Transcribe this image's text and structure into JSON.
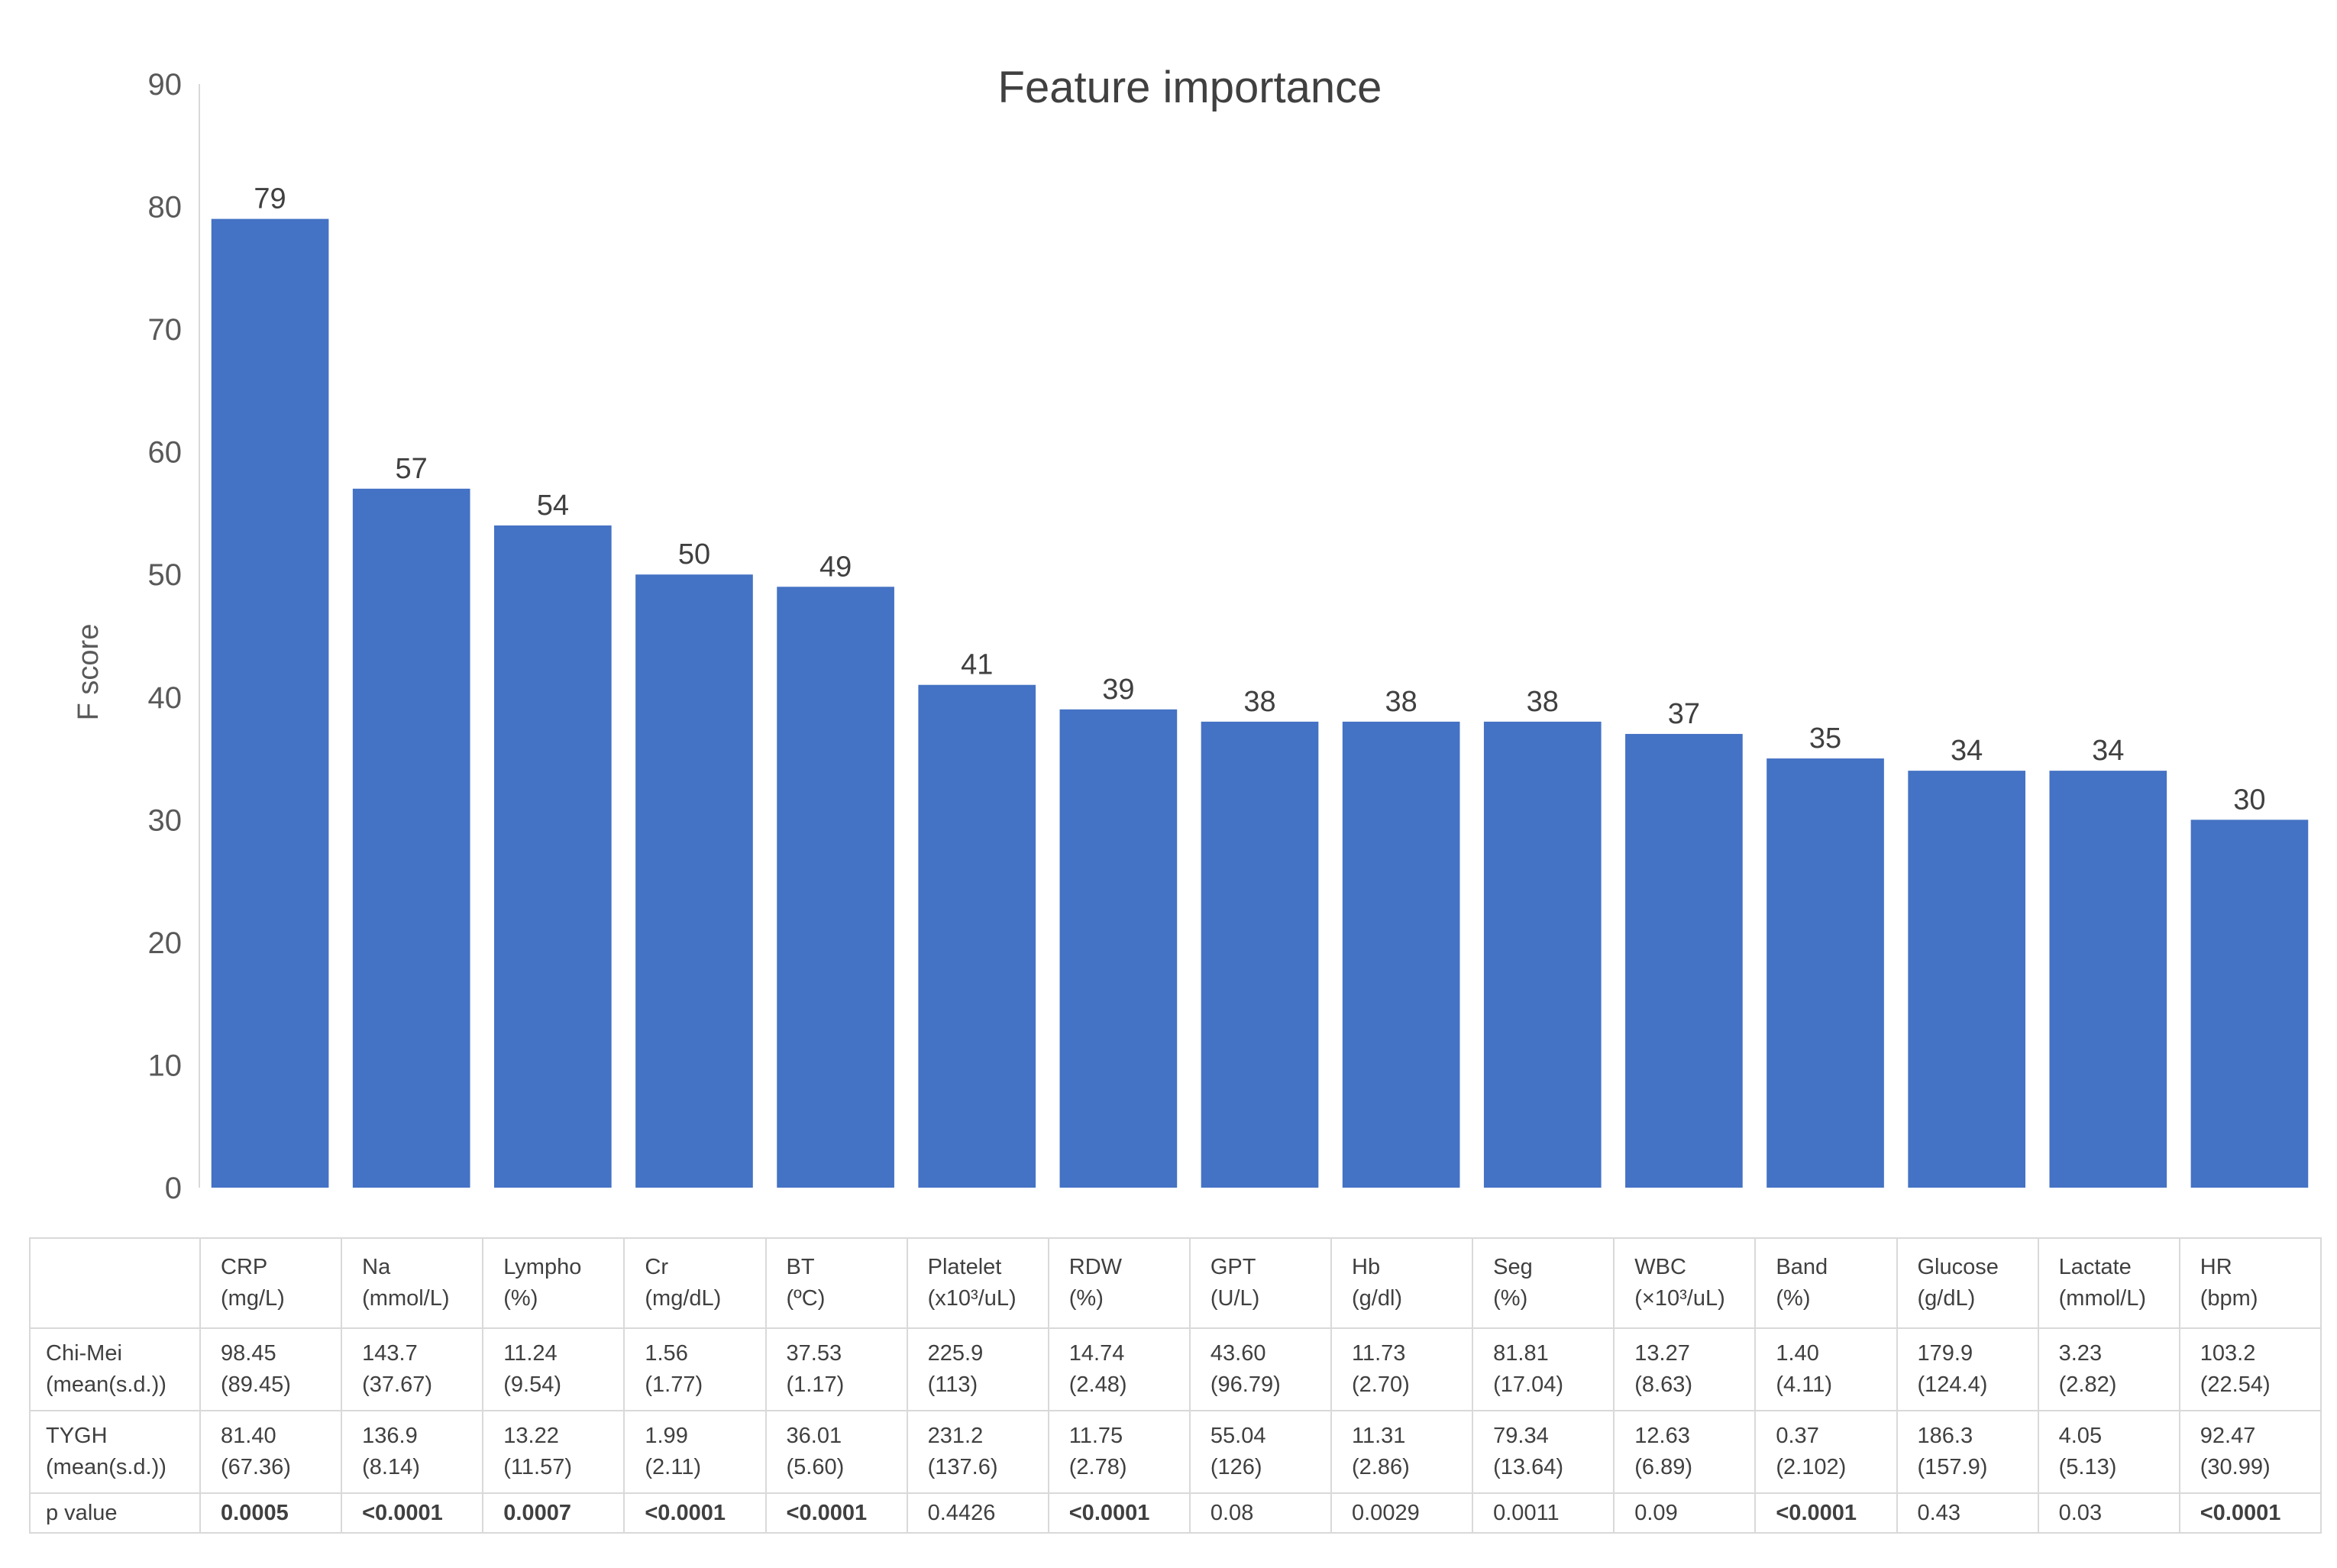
{
  "chart_data": {
    "type": "bar",
    "title": "Feature importance",
    "ylabel": "F score",
    "xlabel": "",
    "ylim": [
      0,
      90
    ],
    "yticks": [
      0,
      10,
      20,
      30,
      40,
      50,
      60,
      70,
      80,
      90
    ],
    "grid": false,
    "bar_color": "#4472C4",
    "categories": [
      "CRP",
      "Na",
      "Lympho",
      "Cr",
      "BT",
      "Platelet",
      "RDW",
      "GPT",
      "Hb",
      "Seg",
      "WBC",
      "Band",
      "Glucose",
      "Lactate",
      "HR"
    ],
    "values": [
      79,
      57,
      54,
      50,
      49,
      41,
      39,
      38,
      38,
      38,
      37,
      35,
      34,
      34,
      30
    ]
  },
  "table": {
    "columns": [
      {
        "name": "CRP",
        "unit": "(mg/L)"
      },
      {
        "name": "Na",
        "unit": "(mmol/L)"
      },
      {
        "name": "Lympho",
        "unit": "(%)"
      },
      {
        "name": "Cr",
        "unit": "(mg/dL)"
      },
      {
        "name": "BT",
        "unit": "(ºC)"
      },
      {
        "name": "Platelet",
        "unit": "(x10³/uL)"
      },
      {
        "name": "RDW",
        "unit": "(%)"
      },
      {
        "name": "GPT",
        "unit": "(U/L)"
      },
      {
        "name": "Hb",
        "unit": "(g/dl)"
      },
      {
        "name": "Seg",
        "unit": "(%)"
      },
      {
        "name": "WBC",
        "unit": "(×10³/uL)"
      },
      {
        "name": "Band",
        "unit": "(%)"
      },
      {
        "name": "Glucose",
        "unit": "(g/dL)"
      },
      {
        "name": "Lactate",
        "unit": "(mmol/L)"
      },
      {
        "name": "HR",
        "unit": "(bpm)"
      }
    ],
    "rows": [
      {
        "label1": "Chi-Mei",
        "label2": "(mean(s.d.))",
        "means": [
          "98.45",
          "143.7",
          "11.24",
          "1.56",
          "37.53",
          "225.9",
          "14.74",
          "43.60",
          "11.73",
          "81.81",
          "13.27",
          "1.40",
          "179.9",
          "3.23",
          "103.2"
        ],
        "sds": [
          "(89.45)",
          "(37.67)",
          "(9.54)",
          "(1.77)",
          "(1.17)",
          "(113)",
          "(2.48)",
          "(96.79)",
          "(2.70)",
          "(17.04)",
          "(8.63)",
          "(4.11)",
          "(124.4)",
          "(2.82)",
          "(22.54)"
        ]
      },
      {
        "label1": "TYGH",
        "label2": "(mean(s.d.))",
        "means": [
          "81.40",
          "136.9",
          "13.22",
          "1.99",
          "36.01",
          "231.2",
          "11.75",
          "55.04",
          "11.31",
          "79.34",
          "12.63",
          "0.37",
          "186.3",
          "4.05",
          "92.47"
        ],
        "sds": [
          "(67.36)",
          "(8.14)",
          "(11.57)",
          "(2.11)",
          "(5.60)",
          "(137.6)",
          "(2.78)",
          "(126)",
          "(2.86)",
          "(13.64)",
          "(6.89)",
          "(2.102)",
          "(157.9)",
          "(5.13)",
          "(30.99)"
        ]
      }
    ],
    "pvalue_label": "p value",
    "pvalues": [
      "0.0005",
      "<0.0001",
      "0.0007",
      "<0.0001",
      "<0.0001",
      "0.4426",
      "<0.0001",
      "0.08",
      "0.0029",
      "0.0011",
      "0.09",
      "<0.0001",
      "0.43",
      "0.03",
      "<0.0001"
    ],
    "pvalue_bold": [
      true,
      true,
      true,
      true,
      true,
      false,
      true,
      false,
      false,
      false,
      false,
      true,
      false,
      false,
      true
    ]
  }
}
